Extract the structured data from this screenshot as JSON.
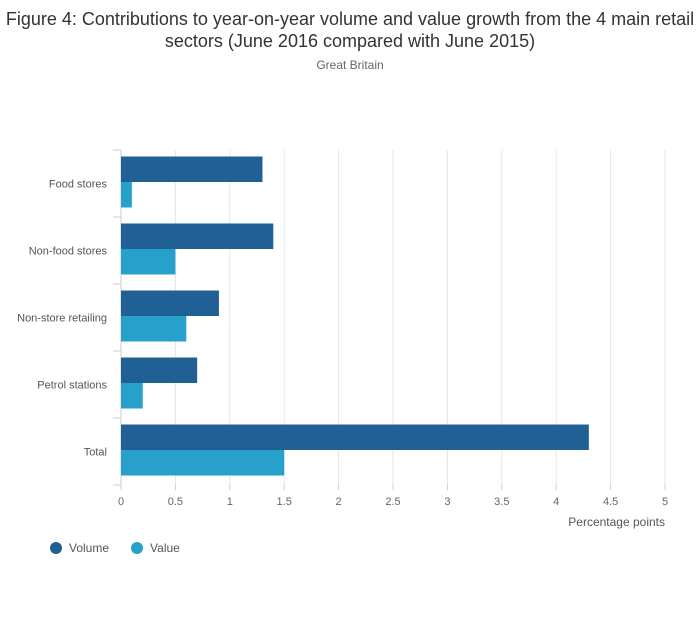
{
  "chart_data": {
    "type": "bar",
    "orientation": "horizontal",
    "title": "Figure 4: Contributions to year-on-year volume and value growth from the 4 main retail sectors (June 2016 compared with June 2015)",
    "subtitle": "Great Britain",
    "categories": [
      "Food stores",
      "Non-food stores",
      "Non-store retailing",
      "Petrol stations",
      "Total"
    ],
    "series": [
      {
        "name": "Volume",
        "color": "#206095",
        "values": [
          1.3,
          1.4,
          0.9,
          0.7,
          4.3
        ]
      },
      {
        "name": "Value",
        "color": "#27a0cc",
        "values": [
          0.1,
          0.5,
          0.6,
          0.2,
          1.5
        ]
      }
    ],
    "xlabel": "Percentage points",
    "xlim": [
      0,
      5
    ],
    "xticks": [
      "0",
      "0.5",
      "1",
      "1.5",
      "2",
      "2.5",
      "3",
      "3.5",
      "4",
      "4.5",
      "5"
    ],
    "grid": true,
    "legend_position": "bottom-left"
  }
}
